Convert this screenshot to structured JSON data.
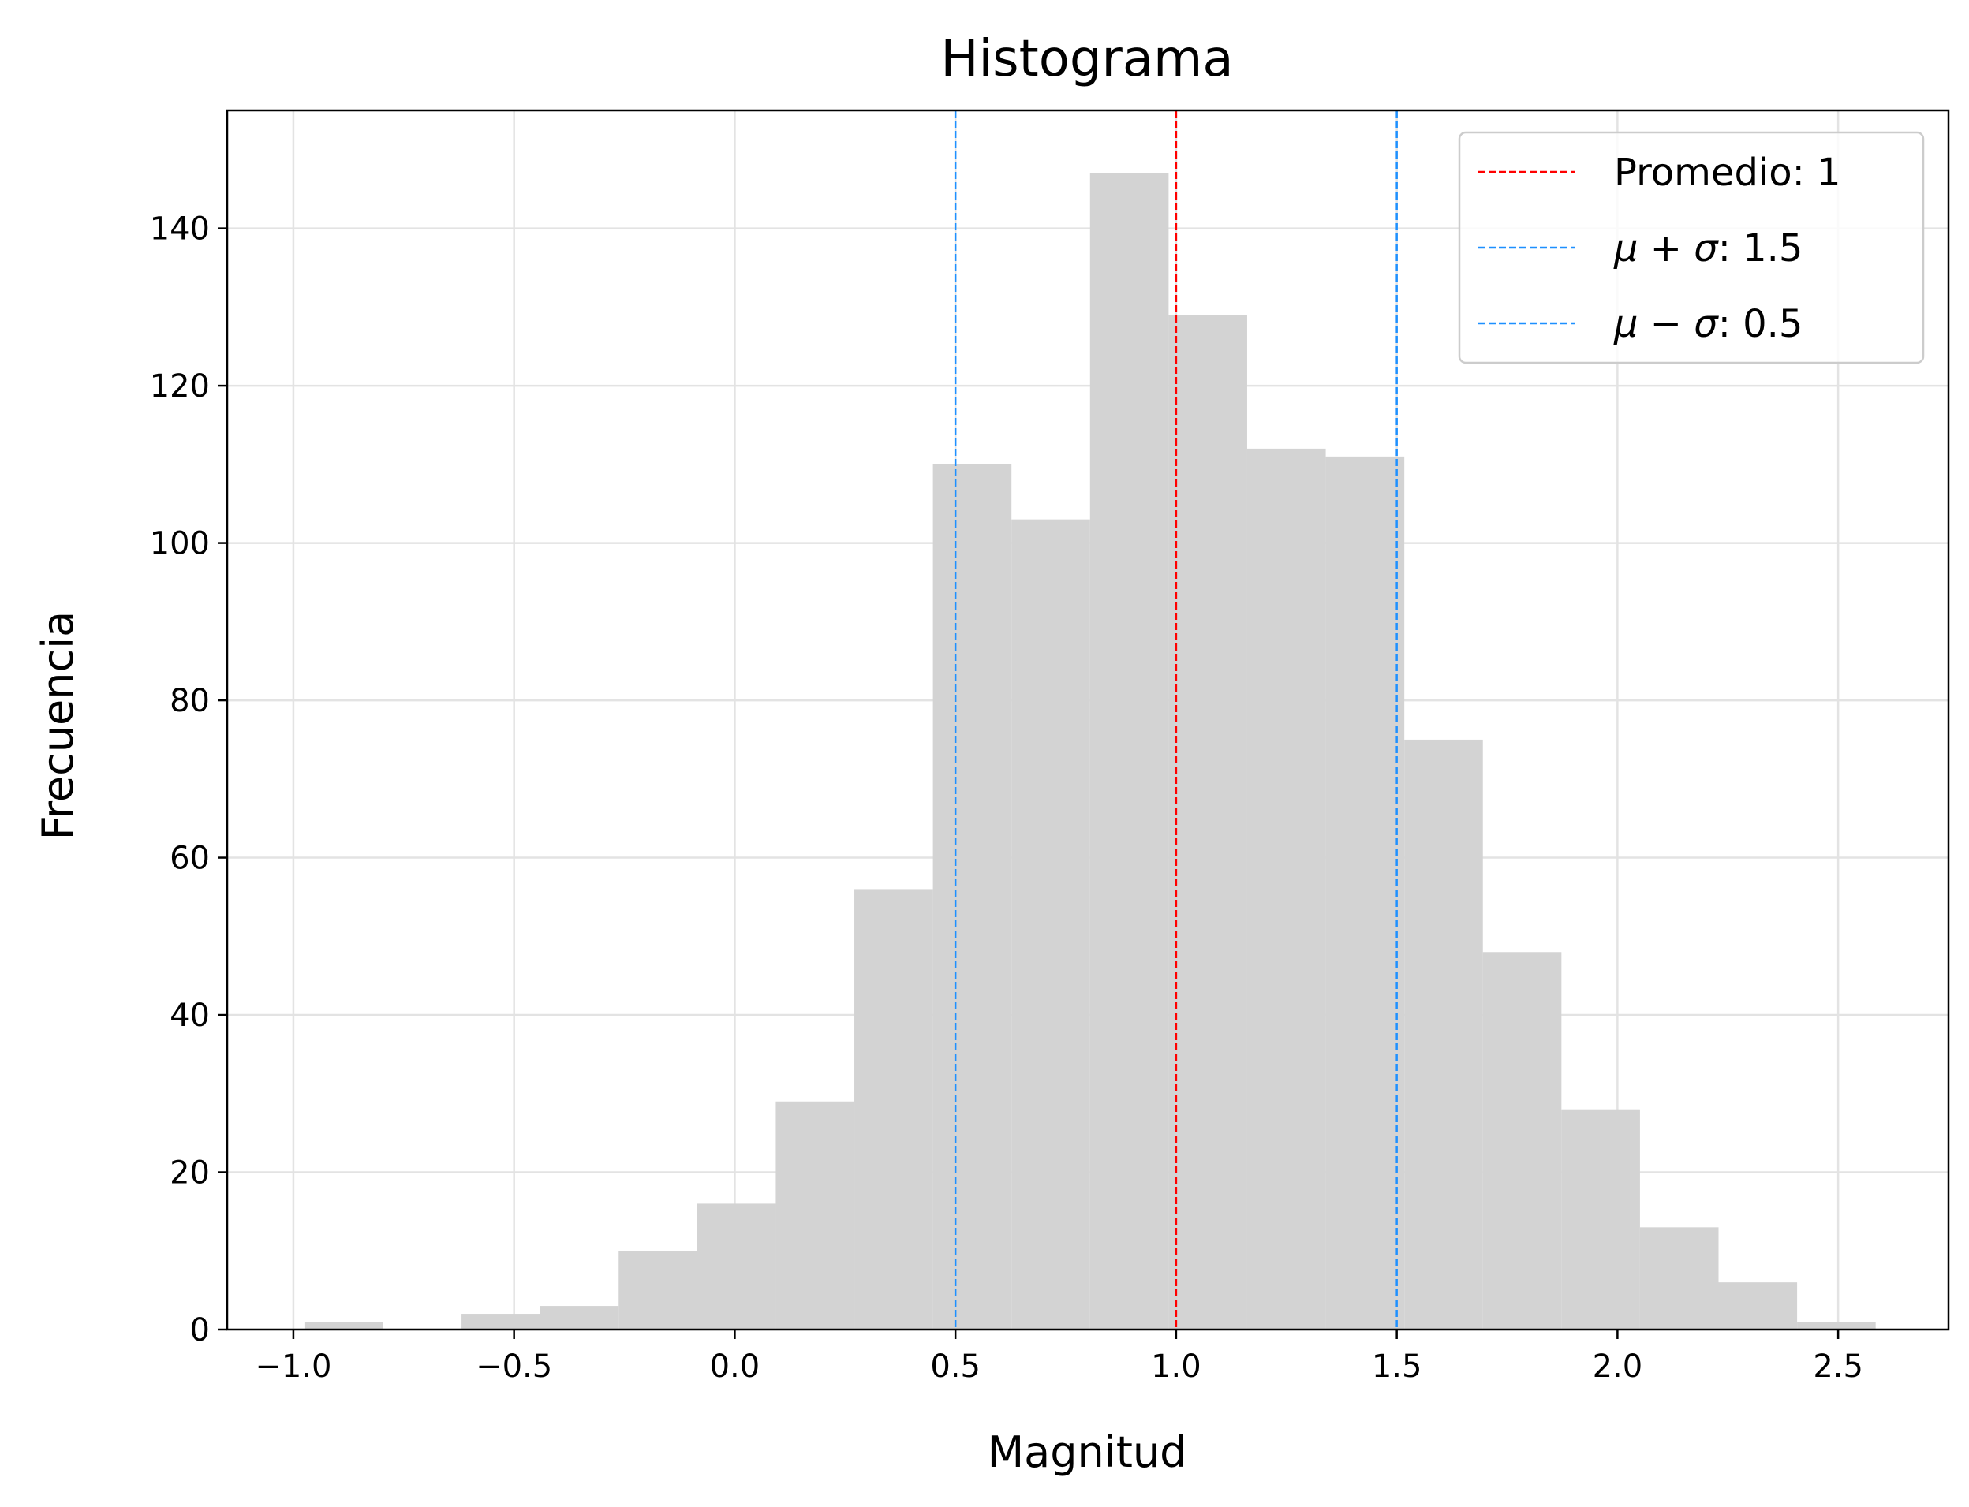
{
  "chart_data": {
    "type": "bar",
    "title": "Histograma",
    "xlabel": "Magnitud",
    "ylabel": "Frecuencia",
    "xlim": [
      -1.15,
      2.75
    ],
    "ylim": [
      0,
      155
    ],
    "grid": true,
    "bar_color": "#d3d3d3",
    "bin_edges": [
      -0.975,
      -0.797,
      -0.619,
      -0.441,
      -0.263,
      -0.085,
      0.093,
      0.271,
      0.449,
      0.627,
      0.805,
      0.983,
      1.161,
      1.339,
      1.517,
      1.695,
      1.873,
      2.051,
      2.229,
      2.407,
      2.585
    ],
    "values": [
      1,
      0,
      2,
      3,
      10,
      16,
      29,
      56,
      110,
      103,
      147,
      129,
      112,
      111,
      75,
      48,
      28,
      13,
      6,
      1
    ],
    "x_ticks": [
      {
        "value": -1.0,
        "label": "−1.0"
      },
      {
        "value": -0.5,
        "label": "−0.5"
      },
      {
        "value": 0.0,
        "label": "0.0"
      },
      {
        "value": 0.5,
        "label": "0.5"
      },
      {
        "value": 1.0,
        "label": "1.0"
      },
      {
        "value": 1.5,
        "label": "1.5"
      },
      {
        "value": 2.0,
        "label": "2.0"
      },
      {
        "value": 2.5,
        "label": "2.5"
      }
    ],
    "y_ticks": [
      {
        "value": 0,
        "label": "0"
      },
      {
        "value": 20,
        "label": "20"
      },
      {
        "value": 40,
        "label": "40"
      },
      {
        "value": 60,
        "label": "60"
      },
      {
        "value": 80,
        "label": "80"
      },
      {
        "value": 100,
        "label": "100"
      },
      {
        "value": 120,
        "label": "120"
      },
      {
        "value": 140,
        "label": "140"
      }
    ],
    "reference_lines": [
      {
        "x": 1.0,
        "color": "#ff0000",
        "label_prefix": "",
        "label_text": "Promedio: 1"
      },
      {
        "x": 1.5,
        "color": "#1e90ff",
        "label_prefix": "μ + σ",
        "label_text": ": 1.5"
      },
      {
        "x": 0.5,
        "color": "#1e90ff",
        "label_prefix": "μ − σ",
        "label_text": ": 0.5"
      }
    ],
    "legend_position": "top-right"
  }
}
